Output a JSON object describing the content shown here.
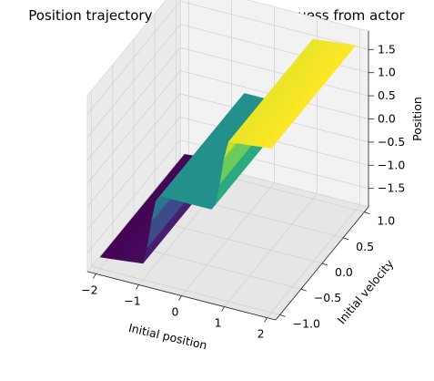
{
  "chart_data": {
    "type": "surface",
    "title": "Position trajectory of OCPs with initial guess from actor",
    "xlabel": "Initial position",
    "ylabel": "Initial velocity",
    "zlabel": "Position",
    "colormap": "viridis",
    "xlim": [
      -2.2,
      2.2
    ],
    "ylim": [
      -1.1,
      1.1
    ],
    "zlim": [
      -1.9,
      1.9
    ],
    "x_ticks": [
      -2,
      -1,
      0,
      1,
      2
    ],
    "x_ticklabels": [
      "−2",
      "−1",
      "0",
      "1",
      "2"
    ],
    "y_ticks": [
      -1.0,
      -0.5,
      0.0,
      0.5,
      1.0
    ],
    "y_ticklabels": [
      "−1.0",
      "−0.5",
      "0.0",
      "0.5",
      "1.0"
    ],
    "z_ticks": [
      -1.5,
      -1.0,
      -0.5,
      0.0,
      0.5,
      1.0,
      1.5
    ],
    "z_ticklabels": [
      "−1.5",
      "−1.0",
      "−0.5",
      "0.0",
      "0.5",
      "1.0",
      "1.5"
    ],
    "surface_profile_vs_initial_position": [
      {
        "x": -2.0,
        "z": -1.65
      },
      {
        "x": -1.5,
        "z": -1.6
      },
      {
        "x": -1.0,
        "z": -1.55
      },
      {
        "x": -0.85,
        "z": -1.0
      },
      {
        "x": -0.75,
        "z": -0.2
      },
      {
        "x": -0.6,
        "z": 0.0
      },
      {
        "x": 0.0,
        "z": 0.0
      },
      {
        "x": 0.6,
        "z": 0.0
      },
      {
        "x": 0.75,
        "z": 0.2
      },
      {
        "x": 0.85,
        "z": 1.0
      },
      {
        "x": 1.0,
        "z": 1.55
      },
      {
        "x": 1.5,
        "z": 1.6
      },
      {
        "x": 2.0,
        "z": 1.65
      }
    ],
    "grid": true
  }
}
